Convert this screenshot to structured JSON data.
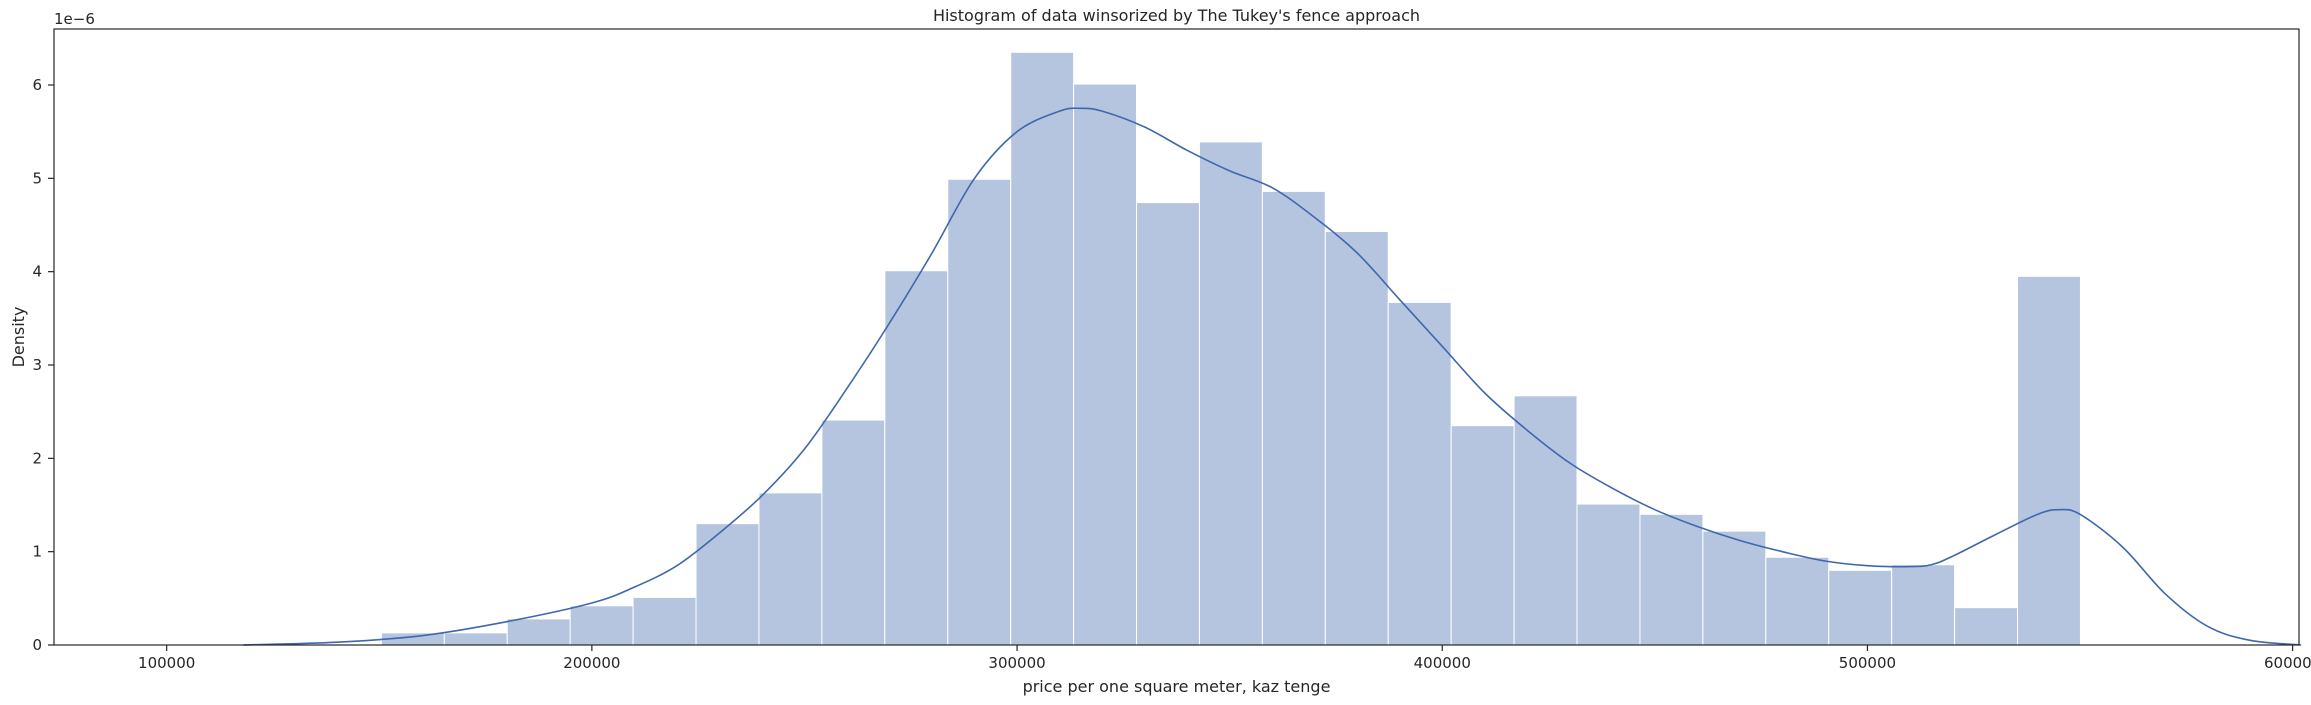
{
  "chart_data": {
    "type": "bar",
    "title": "Histogram of data winsorized by The Tukey's fence approach",
    "xlabel": "price per one square meter, kaz tenge",
    "ylabel": "Density",
    "y_offset_label": "1e−6",
    "xlim": [
      73500,
      601500
    ],
    "ylim": [
      0,
      6.6
    ],
    "x_ticks": [
      100000,
      200000,
      300000,
      400000,
      500000,
      600000
    ],
    "y_ticks": [
      0,
      1,
      2,
      3,
      4,
      5,
      6
    ],
    "x_tick_labels": [
      "100000",
      "200000",
      "300000",
      "400000",
      "500000",
      "600000"
    ],
    "y_tick_labels": [
      "0",
      "1",
      "2",
      "3",
      "4",
      "5",
      "6"
    ],
    "histogram": {
      "bin_edges": [
        150500,
        165300,
        180100,
        194900,
        209700,
        224500,
        239300,
        254100,
        268900,
        283700,
        298500,
        313300,
        328100,
        342900,
        357700,
        372500,
        387300,
        402100,
        416900,
        431700,
        446500,
        461300,
        476100,
        490900,
        505700,
        520500,
        535300,
        550100
      ],
      "values": [
        0.13,
        0.13,
        0.28,
        0.42,
        0.51,
        1.3,
        1.63,
        2.41,
        4.01,
        4.99,
        6.35,
        6.01,
        4.74,
        5.39,
        4.86,
        4.43,
        3.67,
        2.35,
        2.67,
        1.51,
        1.4,
        1.22,
        0.94,
        0.8,
        0.86,
        0.4,
        3.95
      ],
      "color": "#b5c5df",
      "edge_color": "#ffffff"
    },
    "kde": {
      "color": "#3f67ad",
      "x": [
        118000,
        140000,
        160000,
        180000,
        200000,
        210000,
        220000,
        230000,
        240000,
        250000,
        260000,
        270000,
        280000,
        290000,
        300000,
        310000,
        315000,
        320000,
        330000,
        340000,
        350000,
        360000,
        370000,
        380000,
        390000,
        400000,
        410000,
        420000,
        430000,
        440000,
        450000,
        460000,
        470000,
        480000,
        490000,
        500000,
        510000,
        515000,
        520000,
        530000,
        540000,
        545000,
        550000,
        560000,
        570000,
        580000,
        590000,
        602000
      ],
      "y": [
        0.0,
        0.03,
        0.1,
        0.25,
        0.45,
        0.62,
        0.85,
        1.2,
        1.6,
        2.1,
        2.75,
        3.45,
        4.2,
        5.0,
        5.5,
        5.72,
        5.75,
        5.72,
        5.55,
        5.3,
        5.08,
        4.9,
        4.58,
        4.2,
        3.7,
        3.2,
        2.7,
        2.3,
        1.95,
        1.68,
        1.45,
        1.27,
        1.12,
        1.0,
        0.9,
        0.85,
        0.84,
        0.86,
        0.95,
        1.18,
        1.4,
        1.45,
        1.4,
        1.05,
        0.55,
        0.2,
        0.05,
        0.0
      ]
    },
    "grid": false,
    "legend": "none"
  }
}
